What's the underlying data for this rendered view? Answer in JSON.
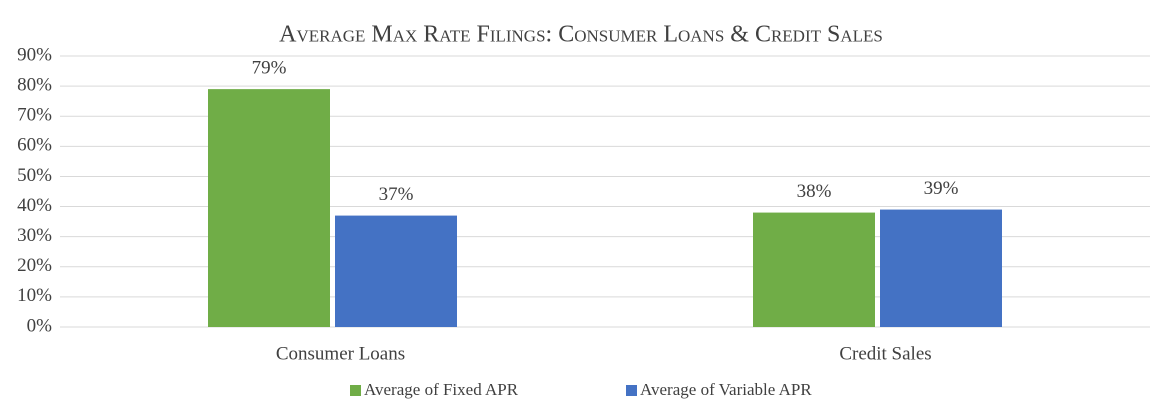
{
  "chart_data": {
    "type": "bar",
    "title": "Average Max Rate Filings: Consumer Loans & Credit Sales",
    "categories": [
      "Consumer Loans",
      "Credit Sales"
    ],
    "series": [
      {
        "name": "Average of Fixed APR",
        "color": "#70ad47",
        "values": [
          79,
          38
        ],
        "value_labels": [
          "79%",
          "38%"
        ]
      },
      {
        "name": "Average of Variable APR",
        "color": "#4472c4",
        "values": [
          37,
          39
        ],
        "value_labels": [
          "37%",
          "39%"
        ]
      }
    ],
    "ylim": [
      0,
      90
    ],
    "yticks": [
      {
        "value": 0,
        "label": "0%"
      },
      {
        "value": 10,
        "label": "10%"
      },
      {
        "value": 20,
        "label": "20%"
      },
      {
        "value": 30,
        "label": "30%"
      },
      {
        "value": 40,
        "label": "40%"
      },
      {
        "value": 50,
        "label": "50%"
      },
      {
        "value": 60,
        "label": "60%"
      },
      {
        "value": 70,
        "label": "70%"
      },
      {
        "value": 80,
        "label": "80%"
      },
      {
        "value": 90,
        "label": "90%"
      }
    ],
    "grid": true,
    "legend": "bottom"
  }
}
